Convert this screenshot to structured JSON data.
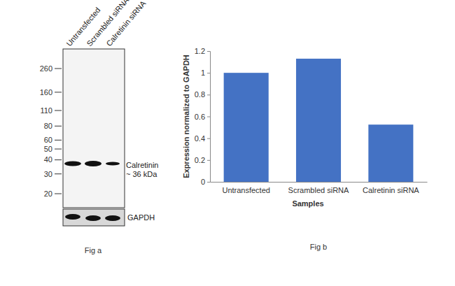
{
  "chart_data": {
    "type": "bar",
    "caption": "Fig b",
    "categories": [
      "Untransfected",
      "Scrambled siRNA",
      "Calretinin siRNA"
    ],
    "values": [
      1.0,
      1.13,
      0.525
    ],
    "color": "#4472c4",
    "x_label": "Samples",
    "y_label": "Expression normalized to GAPDH",
    "ylim": [
      0,
      1.2
    ],
    "yticks": [
      0,
      0.2,
      0.4,
      0.6,
      0.8,
      1,
      1.2
    ],
    "grid": false
  },
  "blot": {
    "caption": "Fig a",
    "lanes": [
      "Untransfected",
      "Scrambled siRNA",
      "Calretinin siRNA"
    ],
    "markers": [
      260,
      160,
      110,
      80,
      60,
      50,
      40,
      30,
      20
    ],
    "band": {
      "label": "Calretinin",
      "size": "~ 36 kDa"
    },
    "loading_control": "GAPDH"
  }
}
